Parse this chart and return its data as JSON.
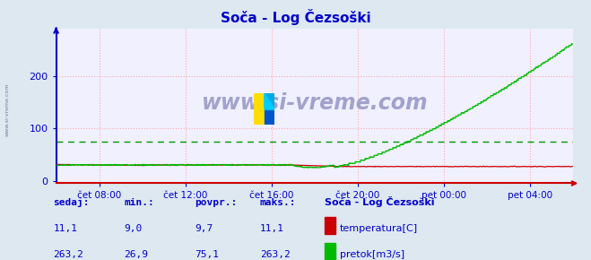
{
  "title": "Soča - Log Čezsoški",
  "bg_color": "#dde8f0",
  "plot_bg_color": "#f0f0ff",
  "grid_color": "#ffaaaa",
  "avg_line_color": "#009900",
  "avg_line_value": 75.1,
  "x_tick_labels": [
    "čet 08:00",
    "čet 12:00",
    "čet 16:00",
    "čet 20:00",
    "pet 00:00",
    "pet 04:00"
  ],
  "x_tick_positions": [
    48,
    144,
    240,
    336,
    432,
    528
  ],
  "y_ticks": [
    0,
    100,
    200
  ],
  "y_lim": [
    -5,
    290
  ],
  "x_lim": [
    0,
    576
  ],
  "title_color": "#0000cc",
  "tick_color": "#0000cc",
  "left_spine_color": "#0000cc",
  "bottom_spine_color": "#cc0000",
  "temp_color": "#cc0000",
  "flow_color": "#00bb00",
  "n_points": 576,
  "temp_base": 30.0,
  "flow_flat_val": 30.0,
  "flow_dip_val": 25.0,
  "flow_max": 263.2,
  "flow_avg": 75.1,
  "flat_end_idx": 260,
  "dip_start_idx": 280,
  "dip_end_idx": 310,
  "rise_start_idx": 320,
  "footer_label1": "sedaj:",
  "footer_label2": "min.:",
  "footer_label3": "povpr.:",
  "footer_label4": "maks.:",
  "footer_station": "Soča - Log Čezsoški",
  "footer_temp_label": "temperatura[C]",
  "footer_flow_label": "pretok[m3/s]",
  "val_temp_cur": "11,1",
  "val_temp_min": "9,0",
  "val_temp_avg": "9,7",
  "val_temp_max": "11,1",
  "val_flow_cur": "263,2",
  "val_flow_min": "26,9",
  "val_flow_avg": "75,1",
  "val_flow_max": "263,2"
}
